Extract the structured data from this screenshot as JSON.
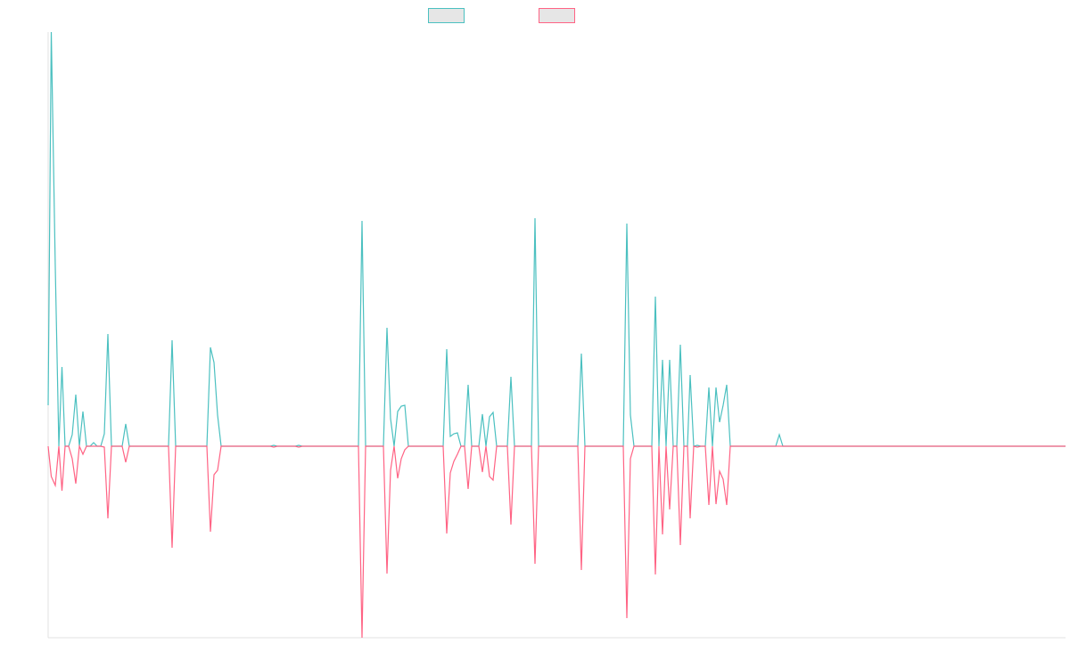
{
  "chart_data": {
    "type": "line",
    "x": [
      0,
      3.5,
      8,
      12,
      15.5,
      19,
      23,
      27,
      31,
      35,
      39,
      43,
      47,
      51,
      55,
      59,
      63,
      67,
      71,
      83,
      87,
      91,
      135,
      139,
      143,
      178,
      182,
      186,
      190,
      194,
      249,
      253,
      257,
      277,
      281,
      285,
      348,
      352,
      356,
      376,
      380,
      384,
      388,
      392,
      396,
      400,
      404,
      443,
      447,
      451,
      455,
      459,
      463,
      467,
      471,
      475,
      483,
      487,
      491,
      495,
      499,
      503,
      515,
      519,
      523,
      542,
      546,
      550,
      594,
      598,
      602,
      645,
      649,
      653,
      657,
      677,
      681,
      685,
      689,
      693,
      697,
      701,
      705,
      709,
      713,
      717,
      720,
      724,
      728,
      732,
      737,
      741,
      745,
      749,
      753,
      757,
      761,
      765,
      816,
      820,
      824,
      1141
    ],
    "xlim": [
      0,
      1141
    ],
    "ylim": [
      -215,
      465
    ],
    "series": [
      {
        "color": "#4bc0c0",
        "values": [
          46,
          465,
          201,
          0,
          89,
          0,
          0,
          13,
          58,
          0,
          39,
          0,
          0,
          4,
          0,
          0,
          14,
          126,
          0,
          0,
          25,
          0,
          0,
          119,
          0,
          0,
          111,
          94,
          35,
          0,
          0,
          1,
          0,
          0,
          1,
          0,
          0,
          253,
          0,
          0,
          133,
          31,
          0,
          39,
          45,
          46,
          0,
          0,
          109,
          11,
          14,
          15,
          0,
          0,
          69,
          0,
          0,
          36,
          0,
          33,
          38,
          0,
          0,
          78,
          0,
          0,
          256,
          0,
          0,
          104,
          0,
          0,
          250,
          35,
          0,
          0,
          168,
          0,
          97,
          0,
          97,
          0,
          0,
          114,
          0,
          0,
          80,
          0,
          1,
          0,
          0,
          66,
          0,
          66,
          27,
          46,
          69,
          0,
          0,
          13,
          0,
          0
        ]
      },
      {
        "color": "#ff6384",
        "values": [
          0,
          -34,
          -44,
          0,
          -50,
          0,
          0,
          -14,
          -42,
          0,
          -9,
          0,
          0,
          0,
          0,
          0,
          -1,
          -81,
          0,
          0,
          -18,
          0,
          0,
          -114,
          0,
          0,
          -96,
          -32,
          -27,
          0,
          0,
          -1,
          0,
          0,
          -1,
          0,
          0,
          -215,
          0,
          0,
          -143,
          -27,
          0,
          -36,
          -14,
          -4,
          0,
          0,
          -98,
          -30,
          -17,
          -9,
          0,
          0,
          -48,
          0,
          0,
          -29,
          0,
          -34,
          -38,
          0,
          0,
          -88,
          0,
          0,
          -132,
          0,
          0,
          -139,
          0,
          0,
          -193,
          -14,
          0,
          0,
          -144,
          0,
          -99,
          0,
          -71,
          0,
          0,
          -111,
          0,
          0,
          -81,
          0,
          -1,
          0,
          0,
          -66,
          0,
          -65,
          -28,
          -37,
          -66,
          0,
          0,
          0,
          0,
          0
        ]
      }
    ]
  }
}
